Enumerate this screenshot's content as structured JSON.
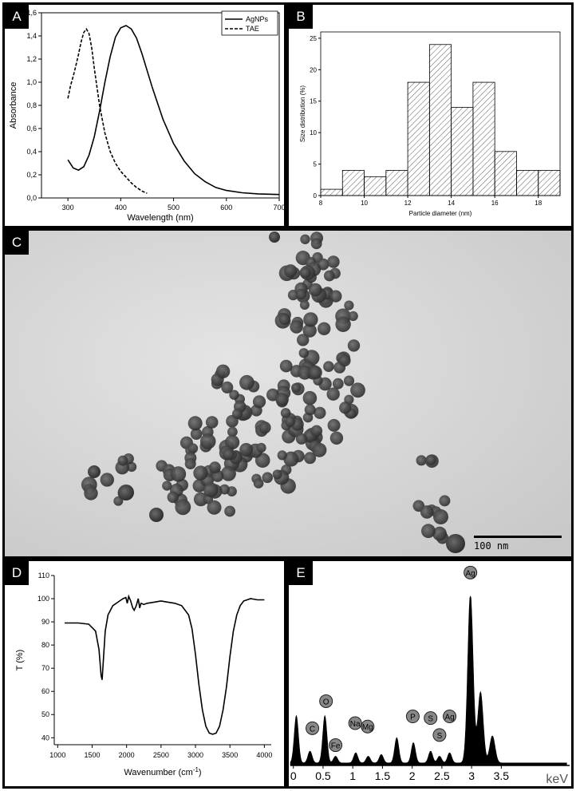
{
  "panels": {
    "a": {
      "label": "A",
      "chart_data": {
        "type": "line",
        "xlabel": "Wavelength (nm)",
        "ylabel": "Absorbance",
        "xlim": [
          250,
          700
        ],
        "ylim": [
          0.0,
          1.6
        ],
        "x_ticks": [
          "300",
          "400",
          "500",
          "600",
          "700"
        ],
        "y_ticks": [
          "0,0",
          "0,2",
          "0,4",
          "0,6",
          "0,8",
          "1,0",
          "1,2",
          "1,4",
          "1,6"
        ],
        "legend_position": "top-right",
        "series": [
          {
            "name": "AgNPs",
            "style": "solid",
            "x": [
              300,
              310,
              320,
              330,
              340,
              350,
              360,
              370,
              380,
              390,
              400,
              410,
              420,
              430,
              440,
              460,
              480,
              500,
              520,
              540,
              560,
              580,
              600,
              630,
              660,
              700
            ],
            "y": [
              0.33,
              0.26,
              0.24,
              0.27,
              0.37,
              0.53,
              0.75,
              1.0,
              1.22,
              1.39,
              1.47,
              1.49,
              1.46,
              1.38,
              1.25,
              0.95,
              0.68,
              0.47,
              0.32,
              0.21,
              0.14,
              0.09,
              0.065,
              0.045,
              0.035,
              0.03
            ]
          },
          {
            "name": "TAE",
            "style": "dashed",
            "x": [
              300,
              305,
              310,
              315,
              320,
              325,
              330,
              335,
              340,
              345,
              350,
              360,
              370,
              380,
              390,
              400,
              410,
              420,
              430,
              440,
              450
            ],
            "y": [
              0.86,
              0.97,
              1.05,
              1.14,
              1.24,
              1.35,
              1.43,
              1.46,
              1.42,
              1.3,
              1.12,
              0.8,
              0.56,
              0.4,
              0.3,
              0.23,
              0.18,
              0.13,
              0.09,
              0.06,
              0.04
            ]
          }
        ]
      }
    },
    "b": {
      "label": "B",
      "chart_data": {
        "type": "bar",
        "xlabel": "Particle diameter (nm)",
        "ylabel": "Size distribution (%)",
        "xlim": [
          8,
          19
        ],
        "ylim": [
          0,
          26
        ],
        "x_ticks": [
          "8",
          "10",
          "12",
          "14",
          "16",
          "18"
        ],
        "y_ticks": [
          "0",
          "5",
          "10",
          "15",
          "20",
          "25"
        ],
        "bin_edges": [
          8,
          9,
          10,
          11,
          12,
          13,
          14,
          15,
          16,
          17,
          18,
          19
        ],
        "values": [
          1,
          4,
          3,
          4,
          18,
          24,
          14,
          18,
          7,
          4,
          4
        ]
      }
    },
    "c": {
      "label": "C",
      "scale_bar_text": "100 nm"
    },
    "d": {
      "label": "D",
      "chart_data": {
        "type": "line",
        "xlabel_main": "Wavenumber (cm",
        "xlabel_sup": "-1",
        "xlabel_end": ")",
        "ylabel": "T (%)",
        "xlim": [
          950,
          4100
        ],
        "ylim": [
          37,
          110
        ],
        "x_ticks": [
          "1000",
          "1500",
          "2000",
          "2500",
          "3000",
          "3500",
          "4000"
        ],
        "y_ticks": [
          "40",
          "50",
          "60",
          "70",
          "80",
          "90",
          "100",
          "110"
        ],
        "series": [
          {
            "style": "solid",
            "x": [
              1100,
              1300,
              1450,
              1550,
              1600,
              1630,
              1645,
              1660,
              1690,
              1730,
              1800,
              1900,
              1950,
              1990,
              2010,
              2030,
              2060,
              2090,
              2110,
              2140,
              2170,
              2190,
              2210,
              2250,
              2300,
              2400,
              2500,
              2600,
              2700,
              2800,
              2900,
              2950,
              3000,
              3050,
              3100,
              3150,
              3200,
              3250,
              3300,
              3350,
              3400,
              3450,
              3500,
              3550,
              3600,
              3650,
              3700,
              3750,
              3800,
              3900,
              4000
            ],
            "y": [
              89.5,
              89.5,
              89,
              86,
              78,
              67,
              65,
              72,
              86,
              93,
              97,
              99,
              100,
              100.5,
              98,
              101,
              99,
              96,
              95,
              97,
              100,
              96,
              98,
              97.5,
              98,
              98.5,
              99,
              98.5,
              98,
              97,
              93,
              87,
              76,
              63,
              52,
              45,
              42,
              41.5,
              42,
              45,
              52,
              62,
              75,
              86,
              93,
              97,
              99,
              99.5,
              100,
              99.5,
              99.5
            ]
          }
        ]
      }
    },
    "e": {
      "label": "E",
      "chart_data": {
        "type": "area",
        "xlabel": "keV",
        "xlim": [
          -0.05,
          4.65
        ],
        "x_ticks": [
          "0",
          "0.5",
          "1",
          "1.5",
          "2",
          "2.5",
          "3",
          "3.5"
        ],
        "peaks_kev": [
          0.05,
          0.28,
          0.53,
          0.71,
          1.05,
          1.26,
          1.48,
          1.74,
          2.02,
          2.31,
          2.46,
          2.63,
          2.98,
          3.15,
          3.35
        ],
        "peak_heights": [
          0.28,
          0.07,
          0.28,
          0.04,
          0.06,
          0.04,
          0.05,
          0.15,
          0.12,
          0.07,
          0.04,
          0.06,
          1.0,
          0.42,
          0.16
        ],
        "element_labels": [
          {
            "text": "C",
            "kev": 0.32,
            "level": 0.22
          },
          {
            "text": "O",
            "kev": 0.55,
            "level": 0.38
          },
          {
            "text": "Fe",
            "kev": 0.71,
            "level": 0.12
          },
          {
            "text": "Na",
            "kev": 1.04,
            "level": 0.25
          },
          {
            "text": "Mg",
            "kev": 1.25,
            "level": 0.23
          },
          {
            "text": "P",
            "kev": 2.01,
            "level": 0.29
          },
          {
            "text": "S",
            "kev": 2.31,
            "level": 0.28
          },
          {
            "text": "S",
            "kev": 2.46,
            "level": 0.18
          },
          {
            "text": "Ag",
            "kev": 2.63,
            "level": 0.29
          },
          {
            "text": "Ag",
            "kev": 2.98,
            "level": 1.14
          }
        ]
      }
    }
  }
}
